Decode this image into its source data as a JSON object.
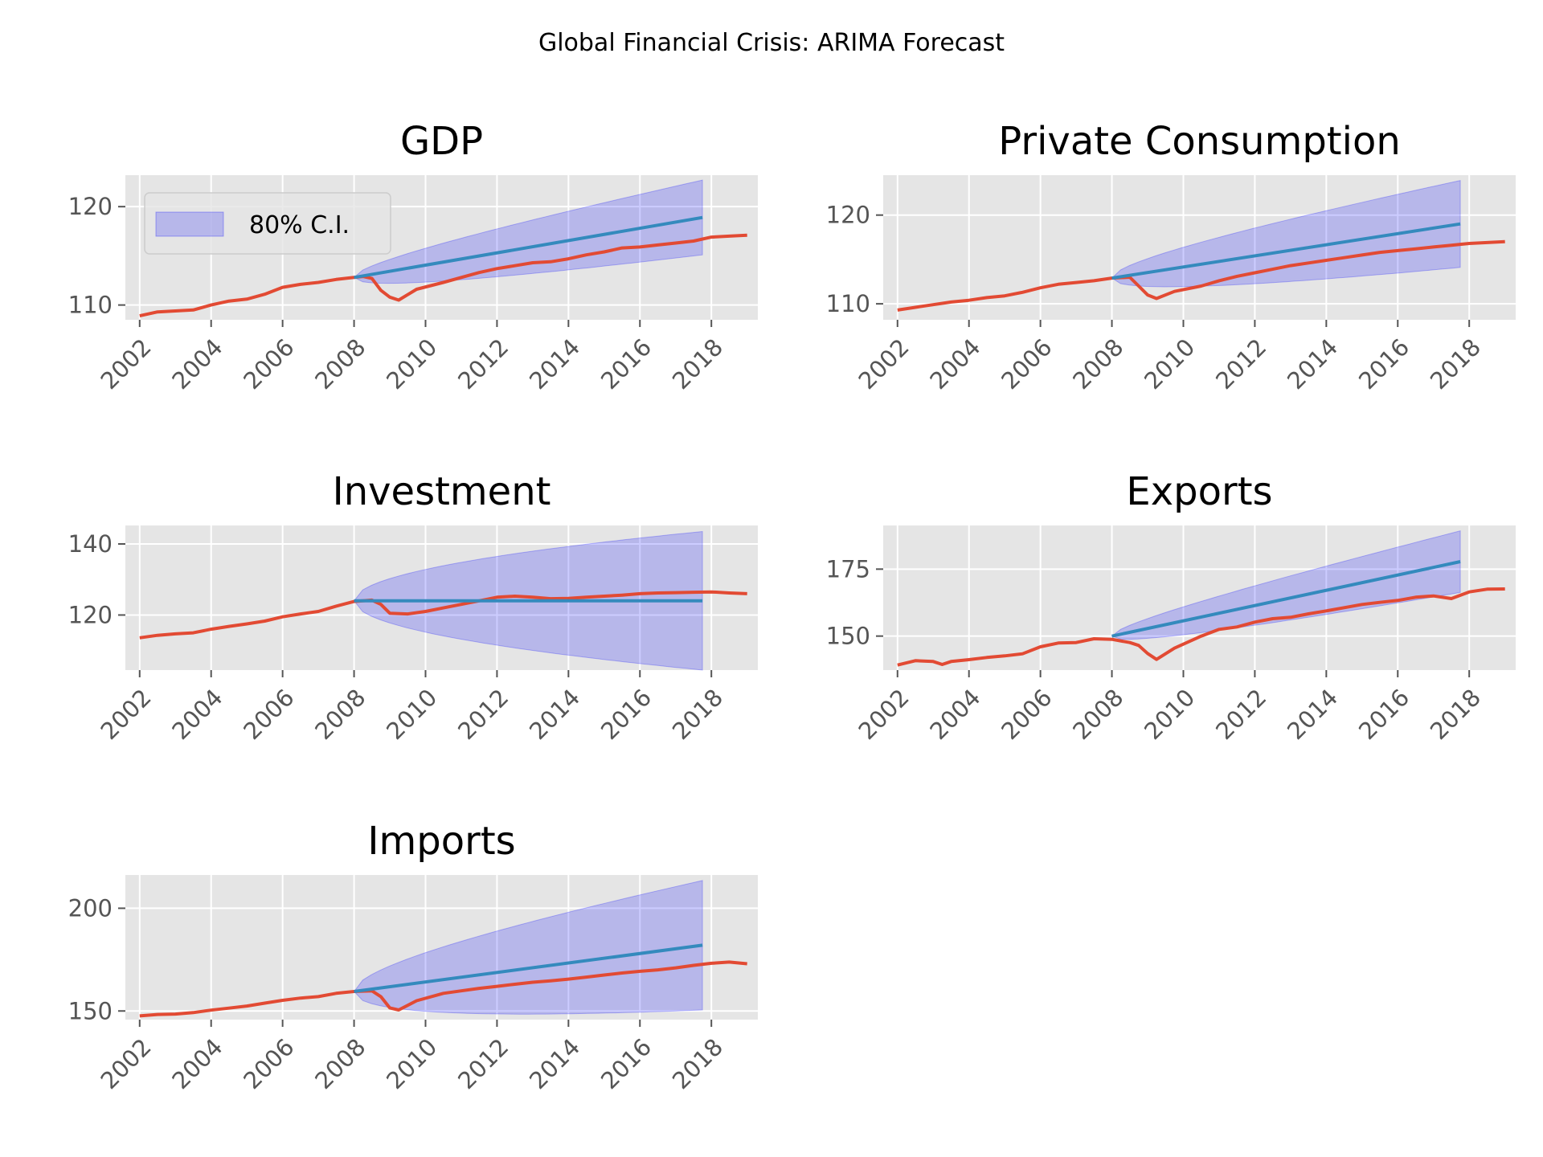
{
  "figure": {
    "suptitle": "Global Financial Crisis: ARIMA Forecast"
  },
  "colors": {
    "actual": "#E24A33",
    "forecast": "#348ABD",
    "ci_fill": "#0000ff",
    "panel_bg": "#E5E5E5",
    "grid": "#ffffff",
    "tick": "#555555"
  },
  "chart_data": [
    {
      "type": "line",
      "title": "GDP",
      "legend": {
        "label": "80% C.I.",
        "placement": "upper-left"
      },
      "x_tick_labels": [
        "2002",
        "2004",
        "2006",
        "2008",
        "2010",
        "2012",
        "2014",
        "2016",
        "2018"
      ],
      "y_ticks": [
        110,
        120
      ],
      "xlim": [
        2001.6,
        2019.3
      ],
      "ylim": [
        108.5,
        123.2
      ],
      "series": [
        {
          "role": "actual",
          "points": [
            [
              2002,
              108.9
            ],
            [
              2002.5,
              109.3
            ],
            [
              2003,
              109.4
            ],
            [
              2003.5,
              109.5
            ],
            [
              2004,
              110.0
            ],
            [
              2004.5,
              110.4
            ],
            [
              2005,
              110.6
            ],
            [
              2005.5,
              111.1
            ],
            [
              2006,
              111.8
            ],
            [
              2006.5,
              112.1
            ],
            [
              2007,
              112.3
            ],
            [
              2007.5,
              112.6
            ],
            [
              2008,
              112.8
            ],
            [
              2008.25,
              112.9
            ],
            [
              2008.5,
              112.7
            ],
            [
              2008.75,
              111.5
            ],
            [
              2009,
              110.8
            ],
            [
              2009.25,
              110.5
            ],
            [
              2009.75,
              111.6
            ],
            [
              2010.5,
              112.3
            ],
            [
              2011,
              112.8
            ],
            [
              2011.5,
              113.3
            ],
            [
              2012,
              113.7
            ],
            [
              2012.5,
              114.0
            ],
            [
              2013,
              114.3
            ],
            [
              2013.5,
              114.4
            ],
            [
              2014,
              114.7
            ],
            [
              2014.5,
              115.1
            ],
            [
              2015,
              115.4
            ],
            [
              2015.5,
              115.8
            ],
            [
              2016,
              115.9
            ],
            [
              2016.5,
              116.1
            ],
            [
              2017,
              116.3
            ],
            [
              2017.5,
              116.5
            ],
            [
              2018,
              116.9
            ],
            [
              2018.5,
              117.0
            ],
            [
              2019,
              117.1
            ]
          ]
        },
        {
          "role": "forecast",
          "points": [
            [
              2008,
              112.8
            ],
            [
              2017.75,
              118.9
            ]
          ]
        }
      ],
      "ci": {
        "start": 2008,
        "end": 2017.75,
        "center_start": 112.8,
        "center_end": 118.9,
        "half_width_end": 3.8
      }
    },
    {
      "type": "line",
      "title": "Private Consumption",
      "x_tick_labels": [
        "2002",
        "2004",
        "2006",
        "2008",
        "2010",
        "2012",
        "2014",
        "2016",
        "2018"
      ],
      "y_ticks": [
        110,
        120
      ],
      "xlim": [
        2001.6,
        2019.3
      ],
      "ylim": [
        108.2,
        124.5
      ],
      "series": [
        {
          "role": "actual",
          "points": [
            [
              2002,
              109.3
            ],
            [
              2002.5,
              109.6
            ],
            [
              2003,
              109.9
            ],
            [
              2003.5,
              110.2
            ],
            [
              2004,
              110.4
            ],
            [
              2004.5,
              110.7
            ],
            [
              2005,
              110.9
            ],
            [
              2005.5,
              111.3
            ],
            [
              2006,
              111.8
            ],
            [
              2006.5,
              112.2
            ],
            [
              2007,
              112.4
            ],
            [
              2007.5,
              112.6
            ],
            [
              2008,
              112.9
            ],
            [
              2008.5,
              113.0
            ],
            [
              2008.75,
              112.0
            ],
            [
              2009,
              111.0
            ],
            [
              2009.25,
              110.6
            ],
            [
              2009.75,
              111.4
            ],
            [
              2010.5,
              112.0
            ],
            [
              2011,
              112.6
            ],
            [
              2011.5,
              113.1
            ],
            [
              2012,
              113.5
            ],
            [
              2012.5,
              113.9
            ],
            [
              2013,
              114.3
            ],
            [
              2013.5,
              114.6
            ],
            [
              2014,
              114.9
            ],
            [
              2014.5,
              115.2
            ],
            [
              2015,
              115.5
            ],
            [
              2015.5,
              115.8
            ],
            [
              2016,
              116.0
            ],
            [
              2016.5,
              116.2
            ],
            [
              2017,
              116.4
            ],
            [
              2017.5,
              116.6
            ],
            [
              2018,
              116.8
            ],
            [
              2018.5,
              116.9
            ],
            [
              2019,
              117.0
            ]
          ]
        },
        {
          "role": "forecast",
          "points": [
            [
              2008,
              112.9
            ],
            [
              2017.75,
              119.0
            ]
          ]
        }
      ],
      "ci": {
        "start": 2008,
        "end": 2017.75,
        "center_start": 112.9,
        "center_end": 119.0,
        "half_width_end": 4.9
      }
    },
    {
      "type": "line",
      "title": "Investment",
      "x_tick_labels": [
        "2002",
        "2004",
        "2006",
        "2008",
        "2010",
        "2012",
        "2014",
        "2016",
        "2018"
      ],
      "y_ticks": [
        120,
        140
      ],
      "xlim": [
        2001.6,
        2019.3
      ],
      "ylim": [
        104.5,
        145.2
      ],
      "series": [
        {
          "role": "actual",
          "points": [
            [
              2002,
              113.6
            ],
            [
              2002.5,
              114.3
            ],
            [
              2003,
              114.7
            ],
            [
              2003.5,
              115.0
            ],
            [
              2004,
              116.0
            ],
            [
              2004.5,
              116.8
            ],
            [
              2005,
              117.5
            ],
            [
              2005.5,
              118.3
            ],
            [
              2006,
              119.5
            ],
            [
              2006.5,
              120.3
            ],
            [
              2007,
              121.0
            ],
            [
              2007.5,
              122.5
            ],
            [
              2008,
              123.8
            ],
            [
              2008.5,
              124.2
            ],
            [
              2008.75,
              123.0
            ],
            [
              2009,
              120.5
            ],
            [
              2009.5,
              120.3
            ],
            [
              2010,
              121.0
            ],
            [
              2010.5,
              122.0
            ],
            [
              2011,
              123.0
            ],
            [
              2011.5,
              124.0
            ],
            [
              2012,
              125.0
            ],
            [
              2012.5,
              125.3
            ],
            [
              2013,
              125.0
            ],
            [
              2013.5,
              124.6
            ],
            [
              2014,
              124.7
            ],
            [
              2014.5,
              125.0
            ],
            [
              2015,
              125.3
            ],
            [
              2015.5,
              125.6
            ],
            [
              2016,
              126.0
            ],
            [
              2016.5,
              126.2
            ],
            [
              2017,
              126.3
            ],
            [
              2017.5,
              126.4
            ],
            [
              2018,
              126.5
            ],
            [
              2018.5,
              126.2
            ],
            [
              2019,
              126.0
            ]
          ]
        },
        {
          "role": "forecast",
          "points": [
            [
              2008,
              124.0
            ],
            [
              2017.75,
              124.0
            ]
          ]
        }
      ],
      "ci": {
        "start": 2008,
        "end": 2017.75,
        "center_start": 124.0,
        "center_end": 124.0,
        "half_width_end": 19.5
      }
    },
    {
      "type": "line",
      "title": "Exports",
      "x_tick_labels": [
        "2002",
        "2004",
        "2006",
        "2008",
        "2010",
        "2012",
        "2014",
        "2016",
        "2018"
      ],
      "y_ticks": [
        150,
        175
      ],
      "xlim": [
        2001.6,
        2019.3
      ],
      "ylim": [
        137.3,
        191.3
      ],
      "series": [
        {
          "role": "actual",
          "points": [
            [
              2002,
              139.2
            ],
            [
              2002.5,
              140.8
            ],
            [
              2003,
              140.5
            ],
            [
              2003.25,
              139.4
            ],
            [
              2003.5,
              140.5
            ],
            [
              2004,
              141.2
            ],
            [
              2004.5,
              142.0
            ],
            [
              2005,
              142.6
            ],
            [
              2005.5,
              143.4
            ],
            [
              2006,
              146.0
            ],
            [
              2006.5,
              147.4
            ],
            [
              2007,
              147.6
            ],
            [
              2007.5,
              149.0
            ],
            [
              2008,
              148.8
            ],
            [
              2008.5,
              147.6
            ],
            [
              2008.75,
              146.5
            ],
            [
              2009,
              143.5
            ],
            [
              2009.25,
              141.3
            ],
            [
              2009.75,
              145.5
            ],
            [
              2010.5,
              150.0
            ],
            [
              2011,
              152.5
            ],
            [
              2011.5,
              153.4
            ],
            [
              2012,
              155.2
            ],
            [
              2012.5,
              156.5
            ],
            [
              2013,
              157.0
            ],
            [
              2013.5,
              158.3
            ],
            [
              2014,
              159.4
            ],
            [
              2014.5,
              160.6
            ],
            [
              2015,
              161.8
            ],
            [
              2015.5,
              162.6
            ],
            [
              2016,
              163.3
            ],
            [
              2016.5,
              164.5
            ],
            [
              2017,
              165.0
            ],
            [
              2017.5,
              164.0
            ],
            [
              2018,
              166.5
            ],
            [
              2018.5,
              167.5
            ],
            [
              2019,
              167.6
            ]
          ]
        },
        {
          "role": "forecast",
          "points": [
            [
              2008,
              150.0
            ],
            [
              2017.75,
              177.8
            ]
          ]
        }
      ],
      "ci": {
        "start": 2008,
        "end": 2017.75,
        "center_start": 150.0,
        "center_end": 177.8,
        "half_width_end": 11.5
      }
    },
    {
      "type": "line",
      "title": "Imports",
      "x_tick_labels": [
        "2002",
        "2004",
        "2006",
        "2008",
        "2010",
        "2012",
        "2014",
        "2016",
        "2018"
      ],
      "y_ticks": [
        150,
        200
      ],
      "xlim": [
        2001.6,
        2019.3
      ],
      "ylim": [
        145.8,
        216.2
      ],
      "series": [
        {
          "role": "actual",
          "points": [
            [
              2002,
              147.6
            ],
            [
              2002.5,
              148.3
            ],
            [
              2003,
              148.5
            ],
            [
              2003.5,
              149.2
            ],
            [
              2004,
              150.4
            ],
            [
              2004.5,
              151.4
            ],
            [
              2005,
              152.4
            ],
            [
              2005.5,
              153.8
            ],
            [
              2006,
              155.2
            ],
            [
              2006.5,
              156.3
            ],
            [
              2007,
              157.0
            ],
            [
              2007.5,
              158.6
            ],
            [
              2008,
              159.5
            ],
            [
              2008.5,
              159.8
            ],
            [
              2008.75,
              157.0
            ],
            [
              2009,
              151.5
            ],
            [
              2009.25,
              150.5
            ],
            [
              2009.75,
              155.0
            ],
            [
              2010.5,
              158.6
            ],
            [
              2011,
              159.8
            ],
            [
              2011.5,
              161.0
            ],
            [
              2012,
              162.0
            ],
            [
              2012.5,
              163.0
            ],
            [
              2013,
              164.0
            ],
            [
              2013.5,
              164.7
            ],
            [
              2014,
              165.5
            ],
            [
              2014.5,
              166.5
            ],
            [
              2015,
              167.5
            ],
            [
              2015.5,
              168.5
            ],
            [
              2016,
              169.3
            ],
            [
              2016.5,
              170.0
            ],
            [
              2017,
              171.0
            ],
            [
              2017.5,
              172.2
            ],
            [
              2018,
              173.2
            ],
            [
              2018.5,
              173.8
            ],
            [
              2019,
              173.0
            ]
          ]
        },
        {
          "role": "forecast",
          "points": [
            [
              2008,
              159.5
            ],
            [
              2017.75,
              182.0
            ]
          ]
        }
      ],
      "ci": {
        "start": 2008,
        "end": 2017.75,
        "center_start": 159.5,
        "center_end": 182.0,
        "half_width_end": 31.5
      }
    }
  ]
}
